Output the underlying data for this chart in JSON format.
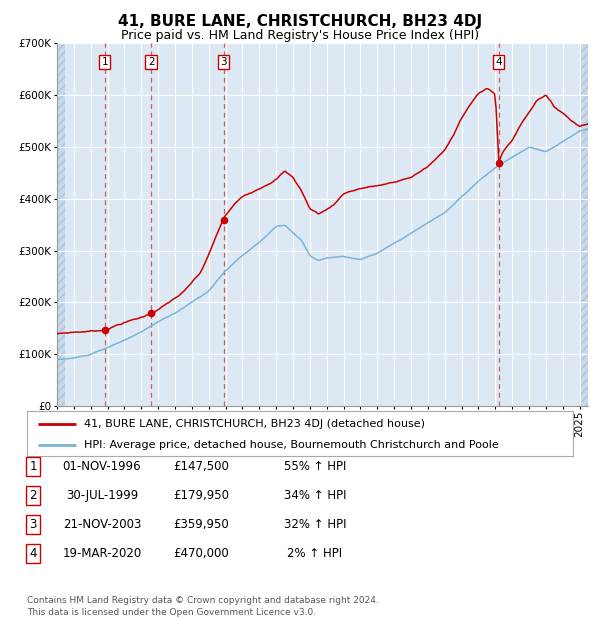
{
  "title": "41, BURE LANE, CHRISTCHURCH, BH23 4DJ",
  "subtitle": "Price paid vs. HM Land Registry's House Price Index (HPI)",
  "ylim": [
    0,
    700000
  ],
  "yticks": [
    0,
    100000,
    200000,
    300000,
    400000,
    500000,
    600000,
    700000
  ],
  "background_color": "#ffffff",
  "plot_bg_color": "#dce9f5",
  "grid_color": "#ffffff",
  "sale_years": [
    1996.83,
    1999.58,
    2003.89,
    2020.21
  ],
  "sale_prices": [
    147500,
    179950,
    359950,
    470000
  ],
  "sale_labels": [
    "1",
    "2",
    "3",
    "4"
  ],
  "legend_red_label": "41, BURE LANE, CHRISTCHURCH, BH23 4DJ (detached house)",
  "legend_blue_label": "HPI: Average price, detached house, Bournemouth Christchurch and Poole",
  "table_rows": [
    [
      "1",
      "01-NOV-1996",
      "£147,500",
      "55% ↑ HPI"
    ],
    [
      "2",
      "30-JUL-1999",
      "£179,950",
      "34% ↑ HPI"
    ],
    [
      "3",
      "21-NOV-2003",
      "£359,950",
      "32% ↑ HPI"
    ],
    [
      "4",
      "19-MAR-2020",
      "£470,000",
      "2% ↑ HPI"
    ]
  ],
  "footer": "Contains HM Land Registry data © Crown copyright and database right 2024.\nThis data is licensed under the Open Government Licence v3.0.",
  "red_color": "#cc0000",
  "blue_color": "#7cb4d4",
  "vline_color": "#cc4444",
  "title_fontsize": 11,
  "subtitle_fontsize": 9,
  "tick_fontsize": 7.5,
  "legend_fontsize": 8,
  "table_fontsize": 8.5,
  "footer_fontsize": 6.5,
  "xmin": 1994.0,
  "xmax": 2025.5
}
